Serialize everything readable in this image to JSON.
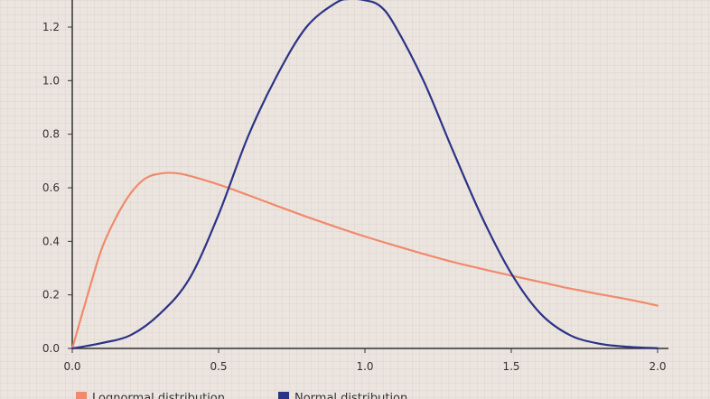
{
  "chart_data": {
    "type": "line",
    "title": "",
    "xlabel": "",
    "ylabel": "",
    "xlim": [
      0,
      2.0
    ],
    "ylim": [
      0,
      1.3
    ],
    "grid": true,
    "legend_position": "bottom-left",
    "x_ticks": [
      "0.0",
      "0.5",
      "1.0",
      "1.5",
      "2.0"
    ],
    "y_ticks": [
      "0.0",
      "0.2",
      "0.4",
      "0.6",
      "0.8",
      "1.0",
      "1.2"
    ],
    "series": [
      {
        "name": "Lognormal distribution",
        "color": "#f08a6c",
        "x": [
          0.0,
          0.05,
          0.1,
          0.15,
          0.2,
          0.25,
          0.3,
          0.35,
          0.4,
          0.5,
          0.6,
          0.7,
          0.8,
          0.9,
          1.0,
          1.1,
          1.2,
          1.3,
          1.4,
          1.5,
          1.6,
          1.7,
          1.8,
          1.9,
          2.0
        ],
        "values": [
          0.0,
          0.19,
          0.37,
          0.49,
          0.58,
          0.635,
          0.653,
          0.655,
          0.645,
          0.612,
          0.573,
          0.532,
          0.492,
          0.454,
          0.418,
          0.385,
          0.353,
          0.323,
          0.297,
          0.272,
          0.248,
          0.224,
          0.203,
          0.183,
          0.16
        ]
      },
      {
        "name": "Normal distribution",
        "color": "#2b3386",
        "x": [
          0.0,
          0.1,
          0.2,
          0.3,
          0.4,
          0.5,
          0.6,
          0.7,
          0.8,
          0.9,
          0.95,
          1.0,
          1.05,
          1.1,
          1.2,
          1.3,
          1.4,
          1.5,
          1.6,
          1.7,
          1.8,
          1.9,
          2.0
        ],
        "values": [
          0.0,
          0.02,
          0.05,
          0.13,
          0.26,
          0.5,
          0.79,
          1.02,
          1.2,
          1.29,
          1.305,
          1.3,
          1.28,
          1.21,
          1.0,
          0.74,
          0.49,
          0.28,
          0.13,
          0.05,
          0.018,
          0.006,
          0.001
        ]
      }
    ]
  }
}
